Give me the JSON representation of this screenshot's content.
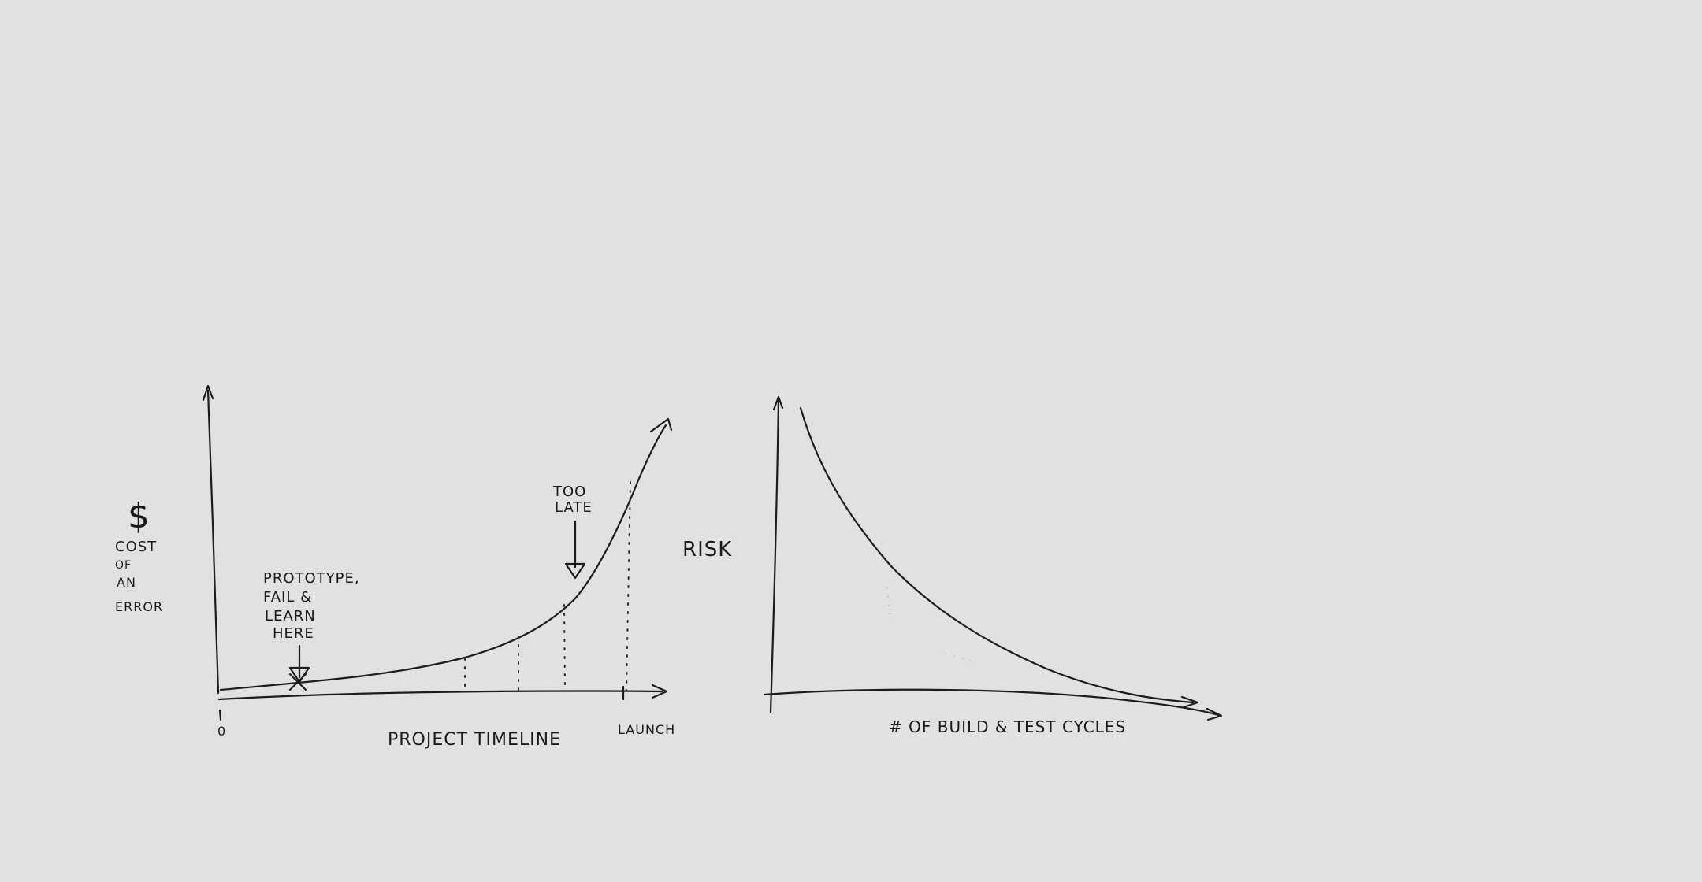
{
  "left_sketch": {
    "y_axis_label": {
      "symbol": "$",
      "line1": "COST",
      "line2": "OF",
      "line3": "AN",
      "line4": "ERROR"
    },
    "x_axis_label": "PROJECT TIMELINE",
    "origin_label": "0",
    "launch_label": "LAUNCH",
    "annotation_prototype": {
      "line1": "PROTOTYPE,",
      "line2": "FAIL &",
      "line3": "LEARN",
      "line4": "HERE"
    },
    "annotation_too_late": {
      "line1": "TOO",
      "line2": "LATE"
    }
  },
  "right_sketch": {
    "y_axis_label": "RISK",
    "x_axis_label": "# OF BUILD & TEST CYCLES"
  },
  "colors": {
    "background": "#e1e1e1",
    "ink": "#1c1c1c"
  }
}
